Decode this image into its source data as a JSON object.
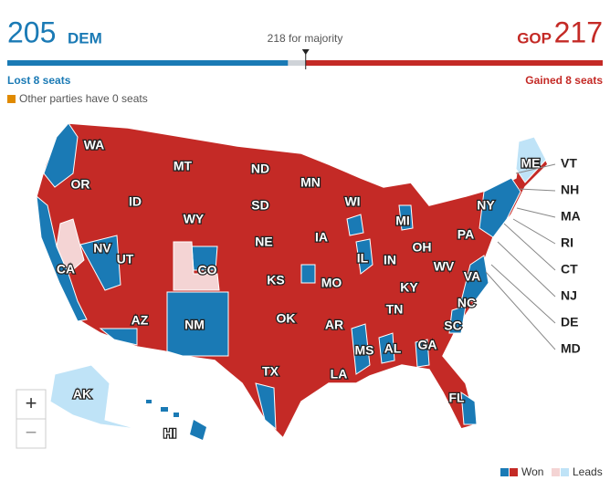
{
  "header": {
    "dem_seats": 205,
    "dem_label": "DEM",
    "gop_label": "GOP",
    "gop_seats": 217,
    "majority": {
      "value": 218,
      "label": "218 for majority"
    },
    "dem_change": "Lost 8 seats",
    "gop_change": "Gained 8 seats",
    "other_note": "Other parties have 0 seats",
    "dem_color": "#1a7ab5",
    "gop_color": "#c42a26",
    "other_color": "#cfd3d8"
  },
  "map": {
    "states": [
      "WA",
      "OR",
      "CA",
      "NV",
      "ID",
      "MT",
      "WY",
      "UT",
      "CO",
      "AZ",
      "NM",
      "ND",
      "SD",
      "NE",
      "KS",
      "OK",
      "TX",
      "MN",
      "IA",
      "MO",
      "AR",
      "LA",
      "WI",
      "IL",
      "MS",
      "AL",
      "TN",
      "KY",
      "IN",
      "MI",
      "OH",
      "GA",
      "FL",
      "SC",
      "NC",
      "VA",
      "WV",
      "PA",
      "NY",
      "ME",
      "AK",
      "HI"
    ],
    "callouts": [
      "VT",
      "NH",
      "MA",
      "RI",
      "CT",
      "NJ",
      "DE",
      "MD"
    ],
    "zoom_in": "+",
    "zoom_out": "−"
  },
  "legend": {
    "won": "Won",
    "leads": "Leads"
  }
}
